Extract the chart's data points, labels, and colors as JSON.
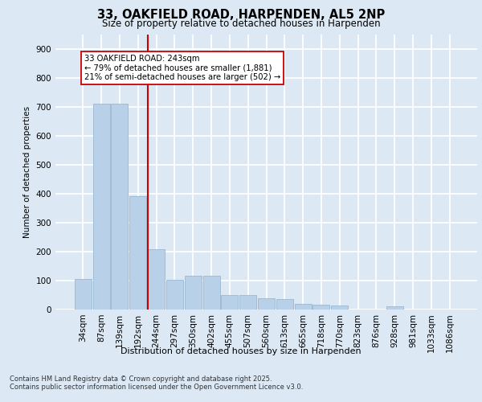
{
  "title_line1": "33, OAKFIELD ROAD, HARPENDEN, AL5 2NP",
  "title_line2": "Size of property relative to detached houses in Harpenden",
  "xlabel": "Distribution of detached houses by size in Harpenden",
  "ylabel": "Number of detached properties",
  "categories": [
    "34sqm",
    "87sqm",
    "139sqm",
    "192sqm",
    "244sqm",
    "297sqm",
    "350sqm",
    "402sqm",
    "455sqm",
    "507sqm",
    "560sqm",
    "613sqm",
    "665sqm",
    "718sqm",
    "770sqm",
    "823sqm",
    "876sqm",
    "928sqm",
    "981sqm",
    "1033sqm",
    "1086sqm"
  ],
  "values": [
    105,
    710,
    710,
    390,
    207,
    103,
    117,
    117,
    50,
    50,
    38,
    35,
    20,
    18,
    13,
    0,
    0,
    12,
    0,
    0,
    0
  ],
  "bar_color": "#b8d0e8",
  "bar_edge_color": "#9ab8d0",
  "vline_color": "#cc0000",
  "annotation_text": "33 OAKFIELD ROAD: 243sqm\n← 79% of detached houses are smaller (1,881)\n21% of semi-detached houses are larger (502) →",
  "annotation_box_color": "#ffffff",
  "annotation_box_edge": "#cc0000",
  "bg_color": "#dce9f5",
  "grid_color": "#ffffff",
  "footer_line1": "Contains HM Land Registry data © Crown copyright and database right 2025.",
  "footer_line2": "Contains public sector information licensed under the Open Government Licence v3.0.",
  "ylim_max": 950,
  "yticks": [
    0,
    100,
    200,
    300,
    400,
    500,
    600,
    700,
    800,
    900
  ]
}
